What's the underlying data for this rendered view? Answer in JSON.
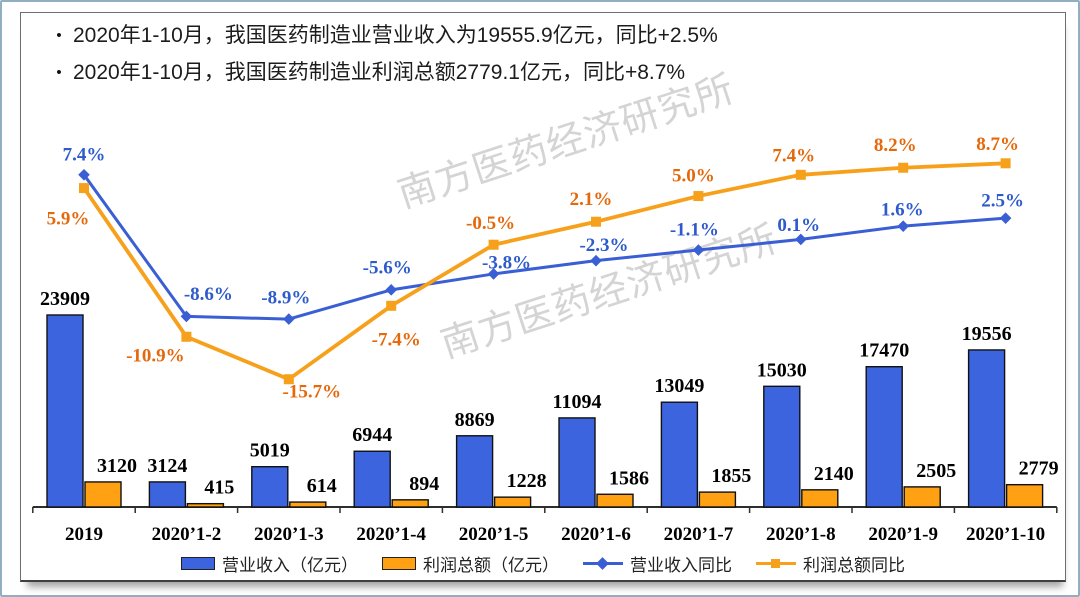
{
  "header": {
    "bullets": [
      "2020年1-10月，我国医药制造业营业收入为19555.9亿元，同比+2.5%",
      "2020年1-10月，我国医药制造业利润总额2779.1亿元，同比+8.7%"
    ]
  },
  "watermark": {
    "text": "南方医药经济研究所"
  },
  "colors": {
    "bar_revenue": "#3C64DE",
    "bar_profit": "#FFA113",
    "bar_border": "#111111",
    "line_revenue": "#3A5ED4",
    "line_profit": "#F7A01B",
    "pct_label_revenue": "#2D5BCB",
    "pct_label_profit": "#E5680B",
    "value_label": "#000000",
    "axis": "#2E2E2E",
    "frame_border": "#92AEC1",
    "watermark": "#9A9A9A"
  },
  "chart_data": {
    "type": "bar",
    "subtype": "clustered-bar-with-two-percent-lines",
    "title": "",
    "categories": [
      "2019",
      "2020’1-2",
      "2020’1-3",
      "2020’1-4",
      "2020’1-5",
      "2020’1-6",
      "2020’1-7",
      "2020’1-8",
      "2020’1-9",
      "2020’1-10"
    ],
    "bar_series": [
      {
        "name": "营业收入（亿元）",
        "values": [
          23909,
          3124,
          5019,
          6944,
          8869,
          11094,
          13049,
          15030,
          17470,
          19556
        ]
      },
      {
        "name": "利润总额（亿元）",
        "values": [
          3120,
          415,
          614,
          894,
          1228,
          1586,
          1855,
          2140,
          2505,
          2779
        ]
      }
    ],
    "line_series": [
      {
        "name": "营业收入同比",
        "unit": "%",
        "values": [
          7.4,
          -8.6,
          -8.9,
          -5.6,
          -3.8,
          -2.3,
          -1.1,
          0.1,
          1.6,
          2.5
        ]
      },
      {
        "name": "利润总额同比",
        "unit": "%",
        "values": [
          5.9,
          -10.9,
          -15.7,
          -7.4,
          -0.5,
          2.1,
          5.0,
          7.4,
          8.2,
          8.7
        ]
      }
    ],
    "bar_axis": {
      "min": 0,
      "max": 25000,
      "visible": false
    },
    "line_axis": {
      "min": -17,
      "max": 10,
      "unit": "%",
      "visible": false
    },
    "grid": false,
    "data_labels": true,
    "legend_position": "bottom"
  }
}
